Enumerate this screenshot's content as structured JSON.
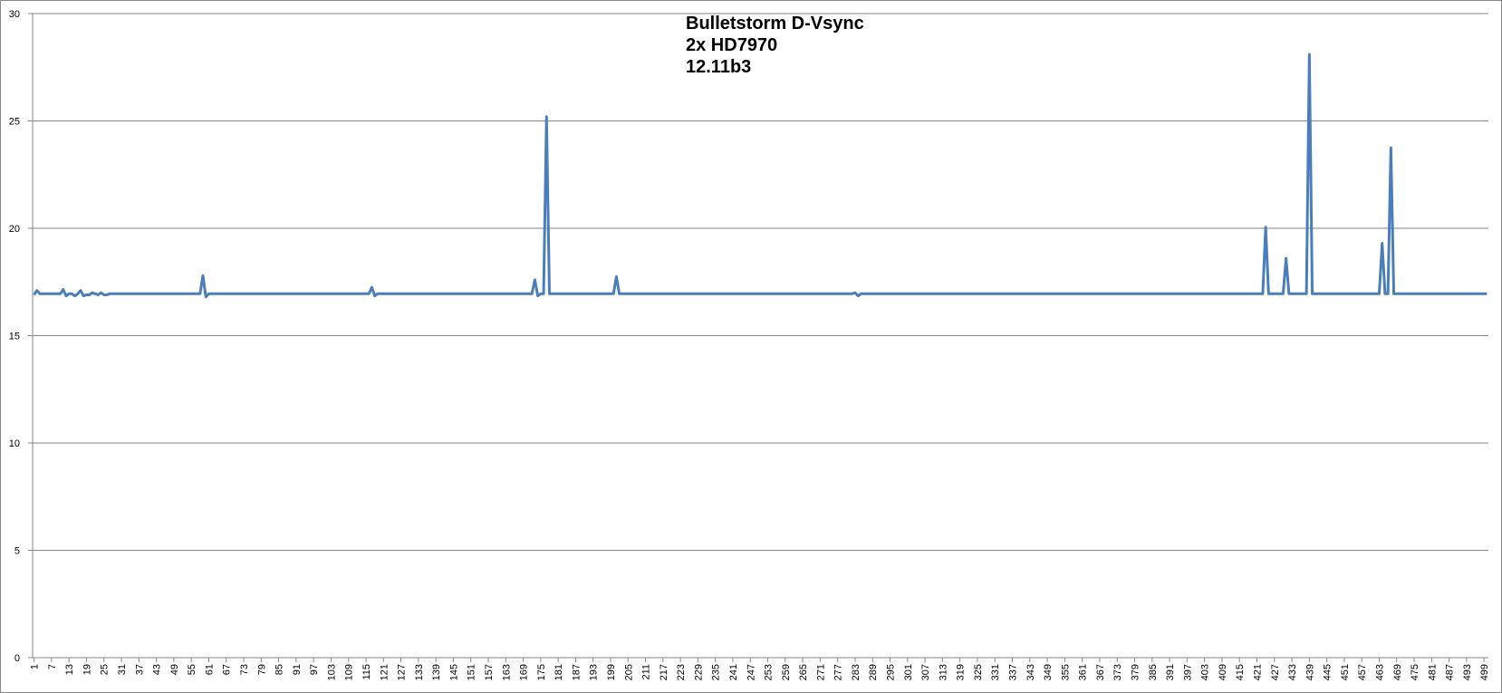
{
  "chart_data": {
    "type": "line",
    "title": [
      "Bulletstorm D-Vsync",
      "2x HD7970",
      "12.11b3"
    ],
    "color": "#4a7ebb",
    "grid": true,
    "xlim": [
      0.5,
      500.5
    ],
    "ylim": [
      0,
      30
    ],
    "yticks": [
      0,
      5,
      10,
      15,
      20,
      25,
      30
    ],
    "xticks": [
      1,
      7,
      13,
      19,
      25,
      31,
      37,
      43,
      49,
      55,
      61,
      67,
      73,
      79,
      85,
      91,
      97,
      103,
      109,
      115,
      121,
      127,
      133,
      139,
      145,
      151,
      157,
      163,
      169,
      175,
      181,
      187,
      193,
      199,
      205,
      211,
      217,
      223,
      229,
      235,
      241,
      247,
      253,
      259,
      265,
      271,
      277,
      283,
      289,
      295,
      301,
      307,
      313,
      319,
      325,
      331,
      337,
      343,
      349,
      355,
      361,
      367,
      373,
      379,
      385,
      391,
      397,
      403,
      409,
      415,
      421,
      427,
      433,
      439,
      445,
      451,
      457,
      463,
      469,
      475,
      481,
      487,
      493,
      499
    ],
    "x": [
      1,
      2,
      3,
      4,
      5,
      6,
      7,
      8,
      9,
      10,
      11,
      12,
      13,
      14,
      15,
      16,
      17,
      18,
      19,
      20,
      21,
      22,
      23,
      24,
      25,
      26,
      27,
      28,
      29,
      30,
      31,
      32,
      33,
      34,
      35,
      36,
      37,
      38,
      39,
      40,
      41,
      42,
      43,
      44,
      45,
      46,
      47,
      48,
      49,
      50,
      51,
      52,
      53,
      54,
      55,
      56,
      57,
      58,
      59,
      60,
      61,
      62,
      63,
      64,
      65,
      66,
      67,
      68,
      69,
      70,
      71,
      72,
      73,
      74,
      75,
      76,
      77,
      78,
      79,
      80,
      81,
      82,
      83,
      84,
      85,
      86,
      87,
      88,
      89,
      90,
      91,
      92,
      93,
      94,
      95,
      96,
      97,
      98,
      99,
      100,
      101,
      102,
      103,
      104,
      105,
      106,
      107,
      108,
      109,
      110,
      111,
      112,
      113,
      114,
      115,
      116,
      117,
      118,
      119,
      120,
      121,
      122,
      123,
      124,
      125,
      126,
      127,
      128,
      129,
      130,
      131,
      132,
      133,
      134,
      135,
      136,
      137,
      138,
      139,
      140,
      141,
      142,
      143,
      144,
      145,
      146,
      147,
      148,
      149,
      150,
      151,
      152,
      153,
      154,
      155,
      156,
      157,
      158,
      159,
      160,
      161,
      162,
      163,
      164,
      165,
      166,
      167,
      168,
      169,
      170,
      171,
      172,
      173,
      174,
      175,
      176,
      177,
      178,
      179,
      180,
      181,
      182,
      183,
      184,
      185,
      186,
      187,
      188,
      189,
      190,
      191,
      192,
      193,
      194,
      195,
      196,
      197,
      198,
      199,
      200,
      201,
      202,
      203,
      204,
      205,
      206,
      207,
      208,
      209,
      210,
      211,
      212,
      213,
      214,
      215,
      216,
      217,
      218,
      219,
      220,
      221,
      222,
      223,
      224,
      225,
      226,
      227,
      228,
      229,
      230,
      231,
      232,
      233,
      234,
      235,
      236,
      237,
      238,
      239,
      240,
      241,
      242,
      243,
      244,
      245,
      246,
      247,
      248,
      249,
      250,
      251,
      252,
      253,
      254,
      255,
      256,
      257,
      258,
      259,
      260,
      261,
      262,
      263,
      264,
      265,
      266,
      267,
      268,
      269,
      270,
      271,
      272,
      273,
      274,
      275,
      276,
      277,
      278,
      279,
      280,
      281,
      282,
      283,
      284,
      285,
      286,
      287,
      288,
      289,
      290,
      291,
      292,
      293,
      294,
      295,
      296,
      297,
      298,
      299,
      300,
      301,
      302,
      303,
      304,
      305,
      306,
      307,
      308,
      309,
      310,
      311,
      312,
      313,
      314,
      315,
      316,
      317,
      318,
      319,
      320,
      321,
      322,
      323,
      324,
      325,
      326,
      327,
      328,
      329,
      330,
      331,
      332,
      333,
      334,
      335,
      336,
      337,
      338,
      339,
      340,
      341,
      342,
      343,
      344,
      345,
      346,
      347,
      348,
      349,
      350,
      351,
      352,
      353,
      354,
      355,
      356,
      357,
      358,
      359,
      360,
      361,
      362,
      363,
      364,
      365,
      366,
      367,
      368,
      369,
      370,
      371,
      372,
      373,
      374,
      375,
      376,
      377,
      378,
      379,
      380,
      381,
      382,
      383,
      384,
      385,
      386,
      387,
      388,
      389,
      390,
      391,
      392,
      393,
      394,
      395,
      396,
      397,
      398,
      399,
      400,
      401,
      402,
      403,
      404,
      405,
      406,
      407,
      408,
      409,
      410,
      411,
      412,
      413,
      414,
      415,
      416,
      417,
      418,
      419,
      420,
      421,
      422,
      423,
      424,
      425,
      426,
      427,
      428,
      429,
      430,
      431,
      432,
      433,
      434,
      435,
      436,
      437,
      438,
      439,
      440,
      441,
      442,
      443,
      444,
      445,
      446,
      447,
      448,
      449,
      450,
      451,
      452,
      453,
      454,
      455,
      456,
      457,
      458,
      459,
      460,
      461,
      462,
      463,
      464,
      465,
      466,
      467,
      468,
      469,
      470,
      471,
      472,
      473,
      474,
      475,
      476,
      477,
      478,
      479,
      480,
      481,
      482,
      483,
      484,
      485,
      486,
      487,
      488,
      489,
      490,
      491,
      492,
      493,
      494,
      495,
      496,
      497,
      498,
      499,
      500
    ],
    "values": [
      16.9,
      17.1,
      16.95,
      16.95,
      16.95,
      16.95,
      16.95,
      16.95,
      16.95,
      16.95,
      17.15,
      16.85,
      16.95,
      16.95,
      16.85,
      16.95,
      17.1,
      16.85,
      16.9,
      16.9,
      17.0,
      16.95,
      16.9,
      17.0,
      16.9,
      16.9,
      16.95,
      16.95,
      16.95,
      16.95,
      16.95,
      16.95,
      16.95,
      16.95,
      16.95,
      16.95,
      16.95,
      16.95,
      16.95,
      16.95,
      16.95,
      16.95,
      16.95,
      16.95,
      16.95,
      16.95,
      16.95,
      16.95,
      16.95,
      16.95,
      16.95,
      16.95,
      16.95,
      16.95,
      16.95,
      16.95,
      16.95,
      16.95,
      17.8,
      16.8,
      16.95,
      16.95,
      16.95,
      16.95,
      16.95,
      16.95,
      16.95,
      16.95,
      16.95,
      16.95,
      16.95,
      16.95,
      16.95,
      16.95,
      16.95,
      16.95,
      16.95,
      16.95,
      16.95,
      16.95,
      16.95,
      16.95,
      16.95,
      16.95,
      16.95,
      16.95,
      16.95,
      16.95,
      16.95,
      16.95,
      16.95,
      16.95,
      16.95,
      16.95,
      16.95,
      16.95,
      16.95,
      16.95,
      16.95,
      16.95,
      16.95,
      16.95,
      16.95,
      16.95,
      16.95,
      16.95,
      16.95,
      16.95,
      16.95,
      16.95,
      16.95,
      16.95,
      16.95,
      16.95,
      16.95,
      16.95,
      17.25,
      16.85,
      16.95,
      16.95,
      16.95,
      16.95,
      16.95,
      16.95,
      16.95,
      16.95,
      16.95,
      16.95,
      16.95,
      16.95,
      16.95,
      16.95,
      16.95,
      16.95,
      16.95,
      16.95,
      16.95,
      16.95,
      16.95,
      16.95,
      16.95,
      16.95,
      16.95,
      16.95,
      16.95,
      16.95,
      16.95,
      16.95,
      16.95,
      16.95,
      16.95,
      16.95,
      16.95,
      16.95,
      16.95,
      16.95,
      16.95,
      16.95,
      16.95,
      16.95,
      16.95,
      16.95,
      16.95,
      16.95,
      16.95,
      16.95,
      16.95,
      16.95,
      16.95,
      16.95,
      16.95,
      16.95,
      17.6,
      16.85,
      16.95,
      16.95,
      25.2,
      16.95,
      16.95,
      16.95,
      16.95,
      16.95,
      16.95,
      16.95,
      16.95,
      16.95,
      16.95,
      16.95,
      16.95,
      16.95,
      16.95,
      16.95,
      16.95,
      16.95,
      16.95,
      16.95,
      16.95,
      16.95,
      16.95,
      16.95,
      17.75,
      16.95,
      16.95,
      16.95,
      16.95,
      16.95,
      16.95,
      16.95,
      16.95,
      16.95,
      16.95,
      16.95,
      16.95,
      16.95,
      16.95,
      16.95,
      16.95,
      16.95,
      16.95,
      16.95,
      16.95,
      16.95,
      16.95,
      16.95,
      16.95,
      16.95,
      16.95,
      16.95,
      16.95,
      16.95,
      16.95,
      16.95,
      16.95,
      16.95,
      16.95,
      16.95,
      16.95,
      16.95,
      16.95,
      16.95,
      16.95,
      16.95,
      16.95,
      16.95,
      16.95,
      16.95,
      16.95,
      16.95,
      16.95,
      16.95,
      16.95,
      16.95,
      16.95,
      16.95,
      16.95,
      16.95,
      16.95,
      16.95,
      16.95,
      16.95,
      16.95,
      16.95,
      16.95,
      16.95,
      16.95,
      16.95,
      16.95,
      16.95,
      16.95,
      16.95,
      16.95,
      16.95,
      16.95,
      16.95,
      16.95,
      16.95,
      16.95,
      16.95,
      16.95,
      16.95,
      16.95,
      16.95,
      17.0,
      16.85,
      16.95,
      16.95,
      16.95,
      16.95,
      16.95,
      16.95,
      16.95,
      16.95,
      16.95,
      16.95,
      16.95,
      16.95,
      16.95,
      16.95,
      16.95,
      16.95,
      16.95,
      16.95,
      16.95,
      16.95,
      16.95,
      16.95,
      16.95,
      16.95,
      16.95,
      16.95,
      16.95,
      16.95,
      16.95,
      16.95,
      16.95,
      16.95,
      16.95,
      16.95,
      16.95,
      16.95,
      16.95,
      16.95,
      16.95,
      16.95,
      16.95,
      16.95,
      16.95,
      16.95,
      16.95,
      16.95,
      16.95,
      16.95,
      16.95,
      16.95,
      16.95,
      16.95,
      16.95,
      16.95,
      16.95,
      16.95,
      16.95,
      16.95,
      16.95,
      16.95,
      16.95,
      16.95,
      16.95,
      16.95,
      16.95,
      16.95,
      16.95,
      16.95,
      16.95,
      16.95,
      16.95,
      16.95,
      16.95,
      16.95,
      16.95,
      16.95,
      16.95,
      16.95,
      16.95,
      16.95,
      16.95,
      16.95,
      16.95,
      16.95,
      16.95,
      16.95,
      16.95,
      16.95,
      16.95,
      16.95,
      16.95,
      16.95,
      16.95,
      16.95,
      16.95,
      16.95,
      16.95,
      16.95,
      16.95,
      16.95,
      16.95,
      16.95,
      16.95,
      16.95,
      16.95,
      16.95,
      16.95,
      16.95,
      16.95,
      16.95,
      16.95,
      16.95,
      16.95,
      16.95,
      16.95,
      16.95,
      16.95,
      16.95,
      16.95,
      16.95,
      16.95,
      16.95,
      16.95,
      16.95,
      16.95,
      16.95,
      16.95,
      16.95,
      16.95,
      16.95,
      16.95,
      16.95,
      16.95,
      16.95,
      16.95,
      16.95,
      16.95,
      16.95,
      16.95,
      20.05,
      16.95,
      16.95,
      16.95,
      16.95,
      16.95,
      16.95,
      18.6,
      16.95,
      16.95,
      16.95,
      16.95,
      16.95,
      16.95,
      16.95,
      28.1,
      16.95,
      16.95,
      16.95,
      16.95,
      16.95,
      16.95,
      16.95,
      16.95,
      16.95,
      16.95,
      16.95,
      16.95,
      16.95,
      16.95,
      16.95,
      16.95,
      16.95,
      16.95,
      16.95,
      16.95,
      16.95,
      16.95,
      16.95,
      16.95,
      19.3,
      16.95,
      16.95,
      23.75,
      16.95,
      16.95,
      16.95,
      16.95,
      16.95,
      16.95,
      16.95,
      16.95,
      16.95,
      16.95,
      16.95,
      16.95,
      16.95,
      16.95,
      16.95,
      16.95,
      16.95,
      16.95,
      16.95,
      16.95,
      16.95,
      16.95,
      16.95,
      16.95,
      16.95,
      16.95,
      16.95,
      16.95,
      16.95,
      16.95,
      16.95,
      16.95,
      16.95
    ]
  }
}
